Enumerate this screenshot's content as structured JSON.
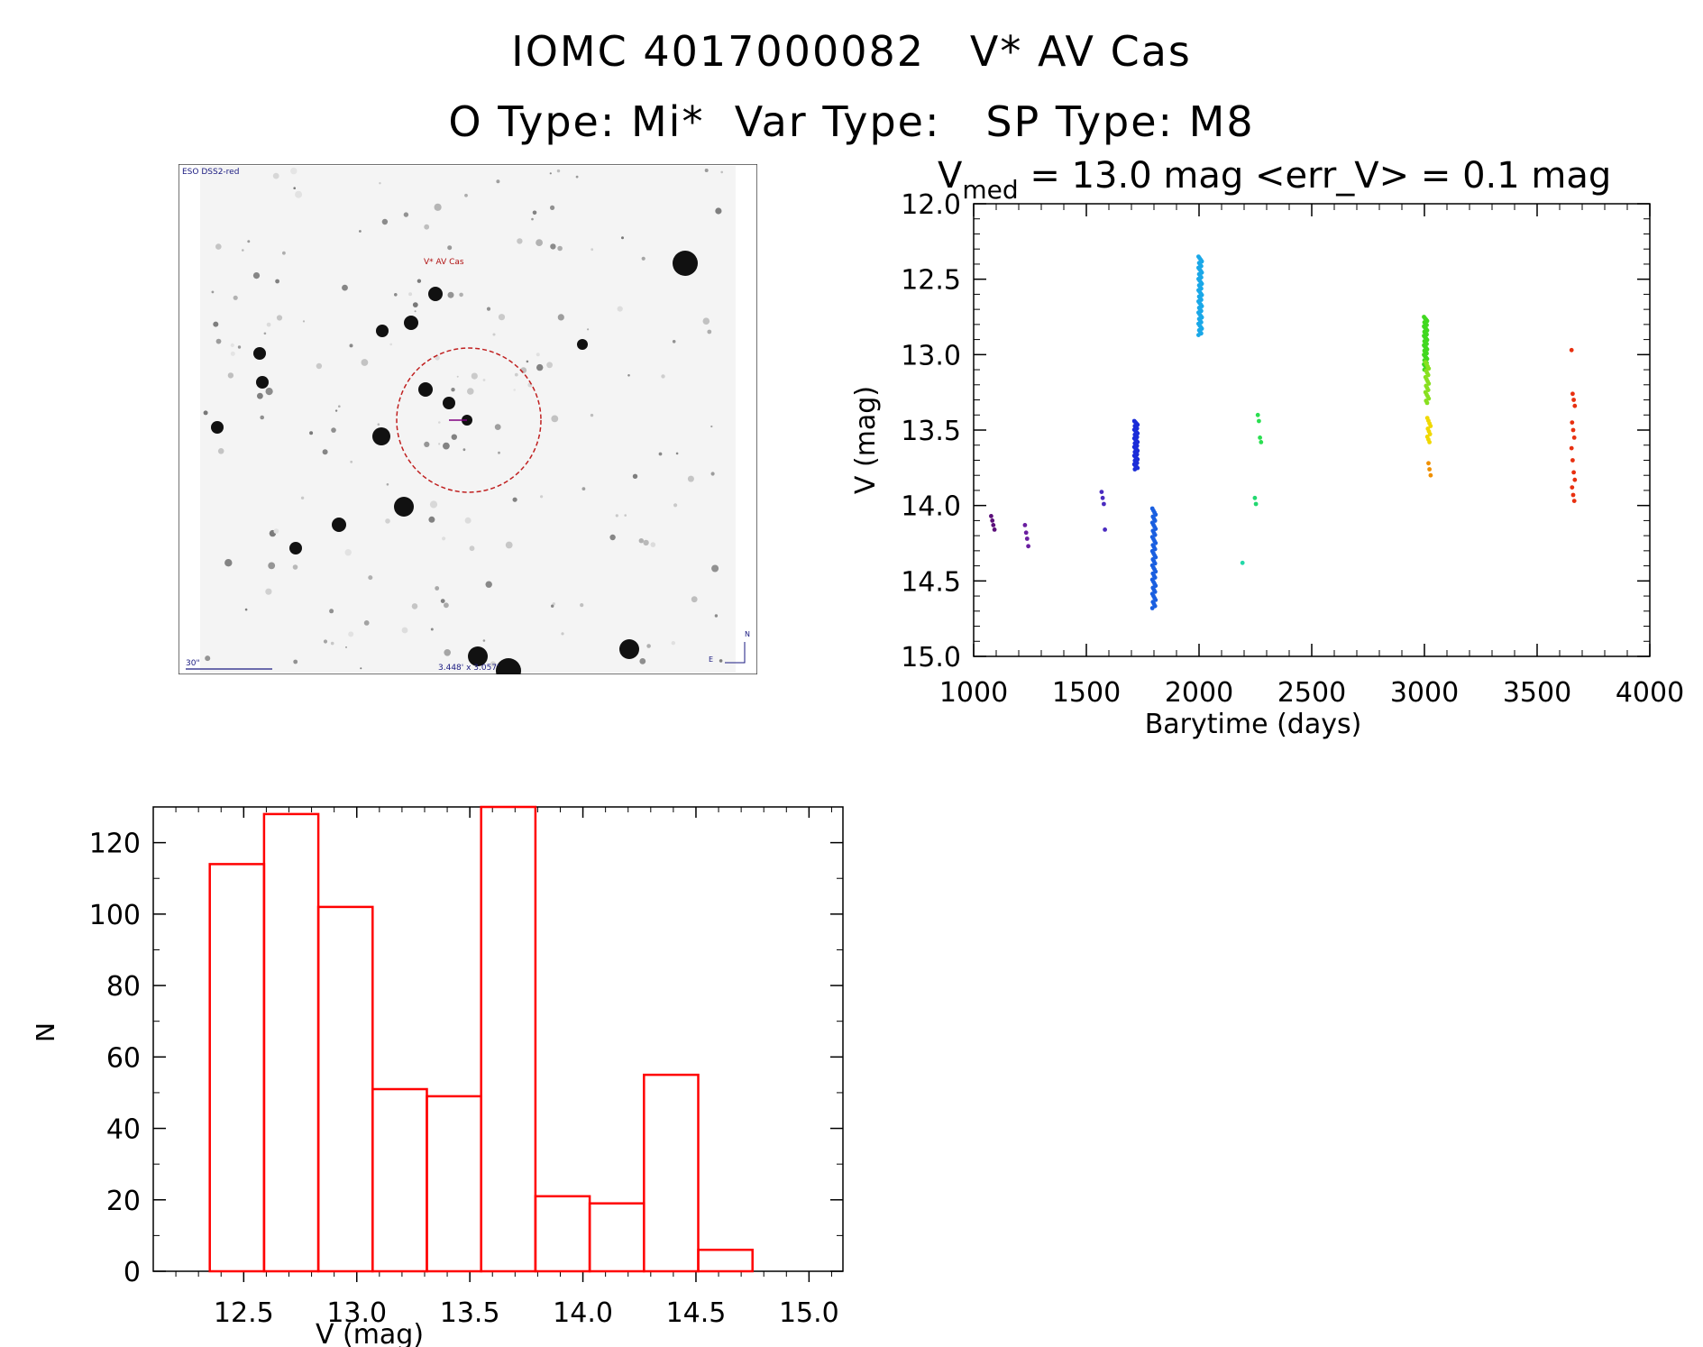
{
  "header": {
    "title_line1": "IOMC 4017000082   V* AV Cas",
    "title_line2": "O Type: Mi*  Var Type:   SP Type: M8"
  },
  "image_panel": {
    "survey_label": "ESO DSS2-red",
    "target_label": "V* AV Cas",
    "scale_label": "30\"",
    "fov_label": "3.448' x 3.057'",
    "north_label": "N",
    "east_label": "E"
  },
  "chart_data": [
    {
      "type": "scatter",
      "title_main": "V",
      "title_sub": "med",
      "title_rest": " = 13.0 mag <err_V> = 0.1 mag",
      "xlabel": "Barytime (days)",
      "ylabel": "V (mag)",
      "xlim": [
        1000,
        4000
      ],
      "ylim": [
        15.0,
        12.0
      ],
      "xticks": [
        "1000",
        "1500",
        "2000",
        "2500",
        "3000",
        "3500",
        "4000"
      ],
      "yticks": [
        "12.0",
        "12.5",
        "13.0",
        "13.5",
        "14.0",
        "14.5",
        "15.0"
      ],
      "groups": [
        {
          "color": "#5b0f7a",
          "x": 1085,
          "y": [
            14.07,
            14.1,
            14.13,
            14.16
          ]
        },
        {
          "color": "#6a1ea0",
          "x": 1235,
          "y": [
            14.13,
            14.18,
            14.22,
            14.27
          ]
        },
        {
          "color": "#4a2bc0",
          "x": 1575,
          "y": [
            13.91,
            13.95,
            13.99,
            14.16
          ]
        },
        {
          "color": "#1b2cd8",
          "x": 1720,
          "y0": 13.44,
          "y1": 13.76,
          "n": 40
        },
        {
          "color": "#1a5fe0",
          "x": 1800,
          "y0": 14.02,
          "y1": 14.68,
          "n": 50
        },
        {
          "color": "#1aa8e8",
          "x": 2005,
          "y0": 12.35,
          "y1": 12.87,
          "n": 50
        },
        {
          "color": "#22d8a8",
          "x": 2200,
          "y": [
            14.38
          ]
        },
        {
          "color": "#22d870",
          "x": 2255,
          "y": [
            13.95,
            13.99
          ]
        },
        {
          "color": "#2adf50",
          "x": 2268,
          "y": [
            13.4,
            13.44,
            13.55,
            13.58
          ]
        },
        {
          "color": "#40d820",
          "x": 3005,
          "y0": 12.75,
          "y1": 13.1,
          "n": 40
        },
        {
          "color": "#88e020",
          "x": 3012,
          "y0": 13.05,
          "y1": 13.32,
          "n": 20
        },
        {
          "color": "#f0d800",
          "x": 3020,
          "y0": 13.42,
          "y1": 13.58,
          "n": 10
        },
        {
          "color": "#f09000",
          "x": 3025,
          "y": [
            13.72,
            13.76,
            13.8
          ]
        },
        {
          "color": "#e83010",
          "x": 3660,
          "y": [
            12.97,
            13.26,
            13.3,
            13.34,
            13.45,
            13.5,
            13.55,
            13.62,
            13.7,
            13.78,
            13.83,
            13.88,
            13.93,
            13.97
          ]
        }
      ]
    },
    {
      "type": "bar",
      "xlabel": "V (mag)",
      "ylabel": "N",
      "xlim": [
        12.1,
        15.15
      ],
      "ylim": [
        0,
        130
      ],
      "xticks": [
        "12.5",
        "13.0",
        "13.5",
        "14.0",
        "14.5",
        "15.0"
      ],
      "yticks": [
        "0",
        "20",
        "40",
        "60",
        "80",
        "100",
        "120"
      ],
      "bin_edges": [
        12.35,
        12.59,
        12.83,
        13.07,
        13.31,
        13.55,
        13.79,
        14.03,
        14.27,
        14.51,
        14.75
      ],
      "values": [
        114,
        128,
        102,
        51,
        49,
        130,
        21,
        19,
        55,
        6
      ],
      "color": "#ff0000"
    }
  ]
}
